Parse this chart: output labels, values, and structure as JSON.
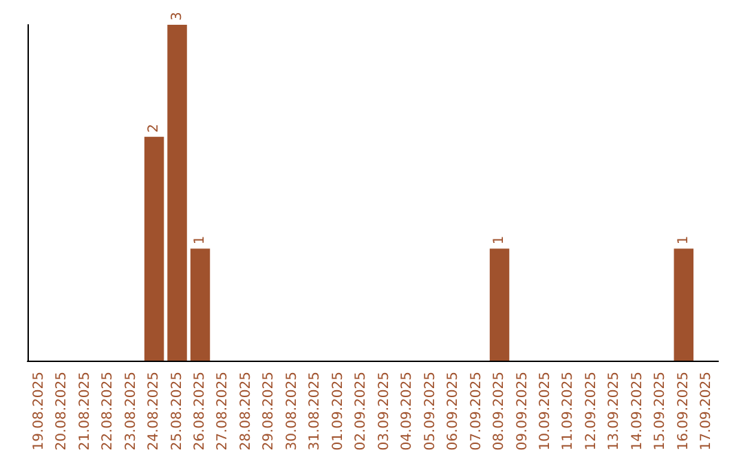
{
  "chart_data": {
    "type": "bar",
    "categories": [
      "19.08.2025",
      "20.08.2025",
      "21.08.2025",
      "22.08.2025",
      "23.08.2025",
      "24.08.2025",
      "25.08.2025",
      "26.08.2025",
      "27.08.2025",
      "28.08.2025",
      "29.08.2025",
      "30.08.2025",
      "31.08.2025",
      "01.09.2025",
      "02.09.2025",
      "03.09.2025",
      "04.09.2025",
      "05.09.2025",
      "06.09.2025",
      "07.09.2025",
      "08.09.2025",
      "09.09.2025",
      "10.09.2025",
      "11.09.2025",
      "12.09.2025",
      "13.09.2025",
      "14.09.2025",
      "15.09.2025",
      "16.09.2025",
      "17.09.2025"
    ],
    "values": [
      0,
      0,
      0,
      0,
      0,
      2,
      3,
      1,
      0,
      0,
      0,
      0,
      0,
      0,
      0,
      0,
      0,
      0,
      0,
      0,
      1,
      0,
      0,
      0,
      0,
      0,
      0,
      0,
      1,
      0
    ],
    "value_labels": [
      null,
      null,
      null,
      null,
      null,
      "2",
      "3",
      "1",
      null,
      null,
      null,
      null,
      null,
      null,
      null,
      null,
      null,
      null,
      null,
      null,
      "1",
      null,
      null,
      null,
      null,
      null,
      null,
      null,
      "1",
      null
    ],
    "color": "#a0522d",
    "grid": false,
    "tick_labels": "x"
  }
}
